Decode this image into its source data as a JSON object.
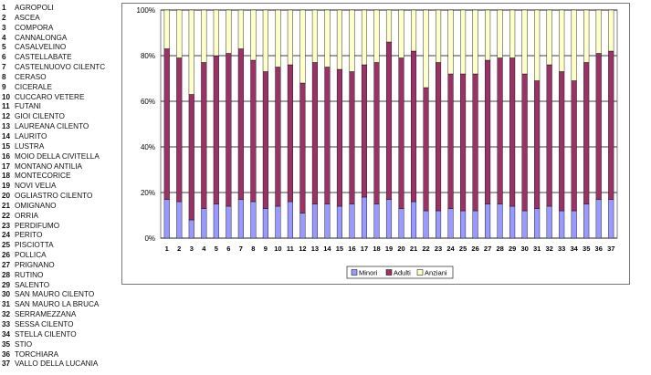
{
  "municipalities": [
    {
      "num": "1",
      "name": "AGROPOLI"
    },
    {
      "num": "2",
      "name": "ASCEA"
    },
    {
      "num": "3",
      "name": "COMPORA"
    },
    {
      "num": "4",
      "name": "CANNALONGA"
    },
    {
      "num": "5",
      "name": "CASALVELINO"
    },
    {
      "num": "6",
      "name": "CASTELLABATE"
    },
    {
      "num": "7",
      "name": "CASTELNUOVO CILENTC"
    },
    {
      "num": "8",
      "name": "CERASO"
    },
    {
      "num": "9",
      "name": "CICERALE"
    },
    {
      "num": "10",
      "name": "CUCCARO VETERE"
    },
    {
      "num": "11",
      "name": "FUTANI"
    },
    {
      "num": "12",
      "name": "GIOI CILENTO"
    },
    {
      "num": "13",
      "name": "LAUREANA CILENTO"
    },
    {
      "num": "14",
      "name": "LAURITO"
    },
    {
      "num": "15",
      "name": "LUSTRA"
    },
    {
      "num": "16",
      "name": "MOIO DELLA CIVITELLA"
    },
    {
      "num": "17",
      "name": "MONTANO ANTILIA"
    },
    {
      "num": "18",
      "name": "MONTECORICE"
    },
    {
      "num": "19",
      "name": "NOVI VELIA"
    },
    {
      "num": "20",
      "name": "OGLIASTRO CILENTO"
    },
    {
      "num": "21",
      "name": "OMIGNANO"
    },
    {
      "num": "22",
      "name": "ORRIA"
    },
    {
      "num": "23",
      "name": "PERDIFUMO"
    },
    {
      "num": "24",
      "name": "PERITO"
    },
    {
      "num": "25",
      "name": "PISCIOTTA"
    },
    {
      "num": "26",
      "name": "POLLICA"
    },
    {
      "num": "27",
      "name": "PRIGNANO"
    },
    {
      "num": "28",
      "name": "RUTINO"
    },
    {
      "num": "29",
      "name": "SALENTO"
    },
    {
      "num": "30",
      "name": "SAN MAURO CILENTO"
    },
    {
      "num": "31",
      "name": "SAN MAURO LA BRUCA"
    },
    {
      "num": "32",
      "name": "SERRAMEZZANA"
    },
    {
      "num": "33",
      "name": "SESSA CILENTO"
    },
    {
      "num": "34",
      "name": "STELLA CILENTO"
    },
    {
      "num": "35",
      "name": "STIO"
    },
    {
      "num": "36",
      "name": "TORCHIARA"
    },
    {
      "num": "37",
      "name": "VALLO DELLA LUCANIA"
    }
  ],
  "chart_data": {
    "type": "bar",
    "stacked": "percent",
    "title": "",
    "xlabel": "",
    "ylabel": "",
    "ylim": [
      0,
      100
    ],
    "y_ticks": [
      "0%",
      "20%",
      "40%",
      "60%",
      "80%",
      "100%"
    ],
    "grid": true,
    "legend_position": "bottom",
    "categories": [
      "1",
      "2",
      "3",
      "4",
      "5",
      "6",
      "7",
      "8",
      "9",
      "10",
      "11",
      "12",
      "13",
      "14",
      "15",
      "16",
      "17",
      "18",
      "19",
      "20",
      "21",
      "22",
      "23",
      "24",
      "25",
      "26",
      "27",
      "28",
      "29",
      "30",
      "31",
      "32",
      "33",
      "34",
      "35",
      "36",
      "37"
    ],
    "series": [
      {
        "name": "Minori",
        "color": "#9999ff",
        "values": [
          17,
          16,
          8,
          13,
          15,
          14,
          17,
          16,
          13,
          14,
          16,
          11,
          15,
          15,
          14,
          15,
          18,
          15,
          17,
          13,
          16,
          12,
          12,
          13,
          12,
          12,
          15,
          15,
          14,
          12,
          13,
          14,
          12,
          12,
          15,
          17,
          17
        ]
      },
      {
        "name": "Adulti",
        "color": "#993366",
        "values": [
          66,
          63,
          55,
          64,
          65,
          67,
          66,
          62,
          60,
          61,
          60,
          57,
          62,
          60,
          60,
          58,
          58,
          62,
          69,
          66,
          66,
          54,
          65,
          59,
          60,
          60,
          63,
          64,
          65,
          60,
          56,
          62,
          61,
          57,
          62,
          64,
          65
        ]
      },
      {
        "name": "Anziani",
        "color": "#ffffcc",
        "values": [
          17,
          21,
          37,
          23,
          20,
          19,
          17,
          22,
          27,
          25,
          24,
          32,
          23,
          25,
          26,
          27,
          24,
          23,
          14,
          21,
          18,
          34,
          23,
          28,
          28,
          28,
          22,
          21,
          21,
          28,
          31,
          24,
          27,
          31,
          23,
          19,
          18
        ]
      }
    ]
  }
}
